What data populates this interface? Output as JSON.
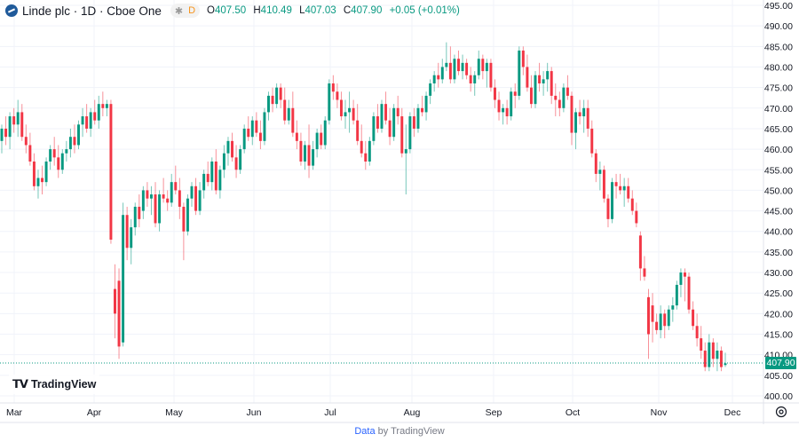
{
  "header": {
    "symbol_title": "Linde plc · 1D · Cboe One",
    "pill_icon": "snowflake-icon",
    "pill_label": "D",
    "ohlc": {
      "o_label": "O",
      "o": "407.50",
      "h_label": "H",
      "h": "410.49",
      "l_label": "L",
      "l": "407.03",
      "c_label": "C",
      "c": "407.90",
      "change": "+0.05 (+0.01%)"
    }
  },
  "branding": {
    "logo_text": "TradingView",
    "logo_mark": "TV"
  },
  "footer": {
    "link_label": "Data",
    "by_text": " by TradingView"
  },
  "colors": {
    "up": "#089981",
    "down": "#F23645",
    "grid": "#f0f3fa",
    "axis_text": "#131722"
  },
  "chart_data": {
    "type": "candlestick",
    "title": "",
    "ylim": [
      400,
      495
    ],
    "y_ticks": [
      "495.00",
      "490.00",
      "485.00",
      "480.00",
      "475.00",
      "470.00",
      "465.00",
      "460.00",
      "455.00",
      "450.00",
      "445.00",
      "440.00",
      "435.00",
      "430.00",
      "425.00",
      "420.00",
      "415.00",
      "410.00",
      "405.00",
      "400.00"
    ],
    "x_ticks": [
      "Mar",
      "Apr",
      "May",
      "Jun",
      "Jul",
      "Aug",
      "Sep",
      "Oct",
      "Nov",
      "Dec"
    ],
    "last_price": "407.90",
    "grid": true,
    "ohlc": [
      [
        462,
        466,
        459,
        465
      ],
      [
        465,
        468,
        461,
        463
      ],
      [
        463,
        469,
        460,
        468
      ],
      [
        468,
        470,
        464,
        466
      ],
      [
        466,
        472,
        463,
        469
      ],
      [
        469,
        471,
        462,
        463
      ],
      [
        463,
        466,
        459,
        461
      ],
      [
        461,
        464,
        456,
        457
      ],
      [
        457,
        459,
        450,
        451
      ],
      [
        451,
        455,
        448,
        453
      ],
      [
        453,
        456,
        449,
        452
      ],
      [
        452,
        458,
        451,
        457
      ],
      [
        457,
        461,
        455,
        460
      ],
      [
        460,
        463,
        456,
        458
      ],
      [
        458,
        461,
        453,
        455
      ],
      [
        455,
        460,
        454,
        459
      ],
      [
        459,
        462,
        457,
        460
      ],
      [
        460,
        465,
        458,
        463
      ],
      [
        463,
        466,
        459,
        461
      ],
      [
        461,
        467,
        460,
        466
      ],
      [
        466,
        470,
        463,
        468
      ],
      [
        468,
        471,
        464,
        465
      ],
      [
        465,
        470,
        463,
        469
      ],
      [
        469,
        472,
        466,
        467
      ],
      [
        467,
        473,
        465,
        471
      ],
      [
        471,
        474,
        468,
        470
      ],
      [
        470,
        472,
        468,
        471
      ],
      [
        471,
        472,
        437,
        438
      ],
      [
        426,
        432,
        414,
        420
      ],
      [
        428,
        431,
        409,
        412
      ],
      [
        413,
        447,
        412,
        444
      ],
      [
        444,
        446,
        433,
        436
      ],
      [
        436,
        443,
        432,
        441
      ],
      [
        441,
        447,
        439,
        446
      ],
      [
        446,
        449,
        441,
        443
      ],
      [
        445,
        451,
        443,
        450
      ],
      [
        450,
        452,
        446,
        448
      ],
      [
        448,
        451,
        444,
        449
      ],
      [
        449,
        452,
        441,
        442
      ],
      [
        442,
        450,
        440,
        449
      ],
      [
        449,
        453,
        447,
        448
      ],
      [
        448,
        450,
        445,
        447
      ],
      [
        447,
        454,
        446,
        452
      ],
      [
        452,
        456,
        449,
        450
      ],
      [
        450,
        453,
        443,
        446
      ],
      [
        446,
        447,
        433,
        440
      ],
      [
        440,
        449,
        439,
        448
      ],
      [
        448,
        452,
        446,
        451
      ],
      [
        451,
        453,
        444,
        445
      ],
      [
        445,
        452,
        444,
        450
      ],
      [
        450,
        455,
        448,
        454
      ],
      [
        454,
        457,
        451,
        452
      ],
      [
        452,
        458,
        450,
        457
      ],
      [
        457,
        460,
        449,
        450
      ],
      [
        450,
        456,
        448,
        455
      ],
      [
        455,
        461,
        453,
        459
      ],
      [
        459,
        463,
        456,
        462
      ],
      [
        462,
        464,
        457,
        458
      ],
      [
        458,
        461,
        453,
        455
      ],
      [
        455,
        461,
        454,
        460
      ],
      [
        460,
        466,
        459,
        465
      ],
      [
        465,
        468,
        462,
        463
      ],
      [
        463,
        468,
        461,
        467
      ],
      [
        467,
        469,
        463,
        464
      ],
      [
        464,
        467,
        460,
        462
      ],
      [
        462,
        470,
        461,
        469
      ],
      [
        469,
        474,
        467,
        473
      ],
      [
        473,
        475,
        469,
        471
      ],
      [
        471,
        476,
        470,
        475
      ],
      [
        475,
        476,
        470,
        472
      ],
      [
        472,
        475,
        466,
        467
      ],
      [
        467,
        472,
        466,
        470
      ],
      [
        470,
        474,
        463,
        464
      ],
      [
        464,
        467,
        460,
        462
      ],
      [
        462,
        464,
        456,
        457
      ],
      [
        457,
        462,
        455,
        461
      ],
      [
        461,
        466,
        453,
        456
      ],
      [
        456,
        462,
        455,
        460
      ],
      [
        460,
        465,
        458,
        464
      ],
      [
        464,
        466,
        460,
        461
      ],
      [
        461,
        468,
        460,
        467
      ],
      [
        467,
        477,
        466,
        476
      ],
      [
        476,
        478,
        472,
        474
      ],
      [
        474,
        476,
        470,
        472
      ],
      [
        472,
        474,
        467,
        468
      ],
      [
        468,
        472,
        465,
        469
      ],
      [
        469,
        474,
        464,
        470
      ],
      [
        470,
        472,
        466,
        467
      ],
      [
        467,
        471,
        461,
        462
      ],
      [
        462,
        466,
        458,
        459
      ],
      [
        459,
        462,
        455,
        457
      ],
      [
        457,
        463,
        456,
        462
      ],
      [
        462,
        469,
        461,
        468
      ],
      [
        468,
        471,
        464,
        465
      ],
      [
        465,
        472,
        464,
        471
      ],
      [
        471,
        474,
        466,
        467
      ],
      [
        467,
        470,
        461,
        463
      ],
      [
        463,
        471,
        462,
        470
      ],
      [
        470,
        473,
        466,
        468
      ],
      [
        468,
        470,
        458,
        459
      ],
      [
        459,
        466,
        449,
        460
      ],
      [
        460,
        469,
        459,
        468
      ],
      [
        468,
        470,
        463,
        465
      ],
      [
        465,
        471,
        464,
        470
      ],
      [
        470,
        473,
        468,
        469
      ],
      [
        469,
        474,
        467,
        473
      ],
      [
        473,
        477,
        471,
        476
      ],
      [
        476,
        479,
        474,
        478
      ],
      [
        478,
        481,
        475,
        477
      ],
      [
        477,
        482,
        476,
        480
      ],
      [
        480,
        486,
        479,
        481
      ],
      [
        481,
        485,
        476,
        477
      ],
      [
        477,
        483,
        476,
        482
      ],
      [
        482,
        484,
        478,
        479
      ],
      [
        479,
        483,
        477,
        481
      ],
      [
        481,
        482,
        477,
        478
      ],
      [
        478,
        480,
        474,
        476
      ],
      [
        476,
        479,
        473,
        478
      ],
      [
        478,
        484,
        477,
        482
      ],
      [
        482,
        483,
        477,
        479
      ],
      [
        479,
        482,
        475,
        481
      ],
      [
        481,
        482,
        474,
        475
      ],
      [
        475,
        477,
        470,
        472
      ],
      [
        472,
        474,
        467,
        469
      ],
      [
        469,
        471,
        466,
        470
      ],
      [
        470,
        472,
        466,
        468
      ],
      [
        468,
        475,
        467,
        474
      ],
      [
        474,
        476,
        470,
        473
      ],
      [
        473,
        485,
        472,
        484
      ],
      [
        484,
        485,
        478,
        480
      ],
      [
        480,
        483,
        474,
        475
      ],
      [
        475,
        478,
        470,
        471
      ],
      [
        471,
        479,
        470,
        478
      ],
      [
        478,
        481,
        474,
        476
      ],
      [
        476,
        479,
        473,
        477
      ],
      [
        477,
        481,
        474,
        479
      ],
      [
        479,
        480,
        471,
        473
      ],
      [
        473,
        476,
        468,
        472
      ],
      [
        472,
        474,
        468,
        470
      ],
      [
        470,
        476,
        469,
        475
      ],
      [
        475,
        478,
        472,
        473
      ],
      [
        473,
        474,
        461,
        464
      ],
      [
        464,
        470,
        460,
        469
      ],
      [
        469,
        472,
        466,
        468
      ],
      [
        468,
        472,
        464,
        470
      ],
      [
        470,
        472,
        463,
        465
      ],
      [
        465,
        467,
        458,
        459
      ],
      [
        459,
        460,
        452,
        454
      ],
      [
        454,
        457,
        450,
        455
      ],
      [
        455,
        456,
        447,
        448
      ],
      [
        448,
        449,
        441,
        443
      ],
      [
        443,
        453,
        442,
        452
      ],
      [
        452,
        454,
        448,
        451
      ],
      [
        451,
        454,
        449,
        450
      ],
      [
        450,
        453,
        446,
        451
      ],
      [
        451,
        453,
        447,
        448
      ],
      [
        448,
        450,
        444,
        445
      ],
      [
        445,
        447,
        441,
        442
      ],
      [
        439,
        440,
        428,
        431
      ],
      [
        431,
        434,
        428,
        429
      ],
      [
        424,
        426,
        409,
        415
      ],
      [
        422,
        425,
        413,
        418
      ],
      [
        418,
        420,
        415,
        416
      ],
      [
        416,
        422,
        414,
        420
      ],
      [
        420,
        421,
        414,
        417
      ],
      [
        417,
        422,
        416,
        421
      ],
      [
        421,
        424,
        418,
        422
      ],
      [
        422,
        428,
        421,
        427
      ],
      [
        427,
        431,
        424,
        430
      ],
      [
        430,
        431,
        423,
        429
      ],
      [
        429,
        430,
        420,
        421
      ],
      [
        421,
        423,
        416,
        417
      ],
      [
        417,
        420,
        412,
        414
      ],
      [
        414,
        417,
        409,
        411
      ],
      [
        411,
        413,
        406,
        407
      ],
      [
        407,
        415,
        406,
        413
      ],
      [
        413,
        414,
        407,
        409
      ],
      [
        409,
        413,
        406,
        411
      ],
      [
        411,
        412,
        406,
        407
      ],
      [
        407.5,
        410.49,
        407.03,
        407.9
      ]
    ]
  }
}
